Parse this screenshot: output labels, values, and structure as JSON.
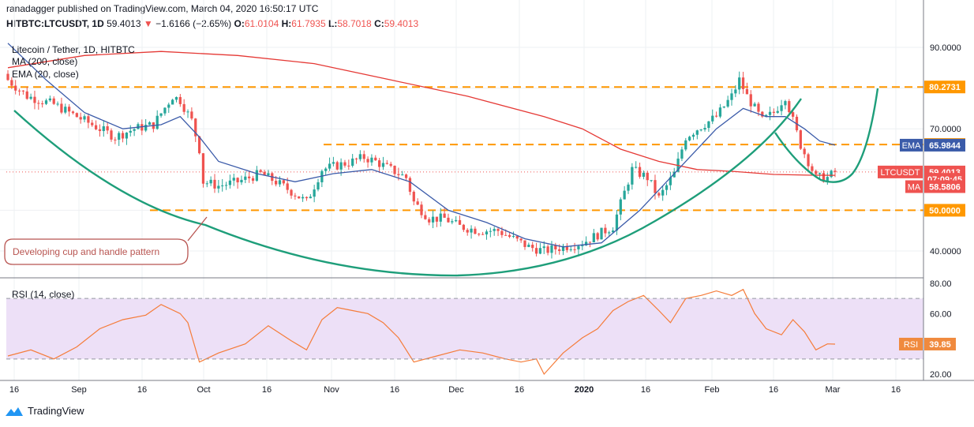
{
  "header": {
    "published": "ranadagger published on TradingView.com, March 04, 2020 16:50:17 UTC",
    "symbol": "HITBTC:LTCUSDT, 1D",
    "last": "59.4013",
    "arrow": "▼",
    "change": "−1.6166 (−2.65%)",
    "o_label": "O:",
    "o": "61.0104",
    "h_label": "H:",
    "h": "61.7935",
    "l_label": "L:",
    "l": "58.7018",
    "c_label": "C:",
    "c": "59.4013"
  },
  "legend": {
    "title": "Litecoin / Tether, 1D, HITBTC",
    "ma": "MA (200, close)",
    "ema": "EMA (20, close)"
  },
  "annotation": "Developing cup and handle pattern",
  "rsi_legend": "RSI (14, close)",
  "footer": {
    "logo": "TradingView"
  },
  "colors": {
    "up": "#26a69a",
    "down": "#ef5350",
    "ma": "#e53935",
    "ema": "#3b5ba9",
    "level": "#ff9800",
    "cup": "#1e9e7a",
    "rsi": "#f57c3a",
    "rsi_band": "#ede0f7"
  },
  "chart_data": {
    "type": "candlestick",
    "price_axis": {
      "ticks": [
        "90.0000",
        "80.0000",
        "70.0000",
        "60.0000",
        "50.0000",
        "40.0000"
      ],
      "range": [
        34,
        92
      ]
    },
    "time_axis": {
      "ticks": [
        "16",
        "Sep",
        "16",
        "Oct",
        "16",
        "Nov",
        "16",
        "Dec",
        "16",
        "2020",
        "16",
        "Feb",
        "16",
        "Mar",
        "16"
      ]
    },
    "levels": [
      80.2731,
      66.1486,
      50.0
    ],
    "price_labels": [
      {
        "name": "",
        "value": "80.2731",
        "price": 80.2731,
        "color": "#ff9800"
      },
      {
        "name": "",
        "value": "66.1486",
        "price": 66.1486,
        "color": "#ff9800"
      },
      {
        "name": "EMA",
        "value": "65.9844",
        "price": 65.9844,
        "color": "#3b5ba9"
      },
      {
        "name": "LTCUSDT",
        "value": "59.4013",
        "price": 59.4013,
        "color": "#ef5350"
      },
      {
        "name": "",
        "value": "07:09:45",
        "price": 57.6,
        "color": "#ef5350"
      },
      {
        "name": "MA",
        "value": "58.5806",
        "price": 55.8,
        "color": "#ef5350"
      },
      {
        "name": "",
        "value": "50.0000",
        "price": 50.0,
        "color": "#ff9800"
      }
    ],
    "close_points": [
      [
        0,
        82
      ],
      [
        5,
        78
      ],
      [
        12,
        76
      ],
      [
        20,
        72
      ],
      [
        28,
        68
      ],
      [
        33,
        70
      ],
      [
        38,
        71
      ],
      [
        43,
        78
      ],
      [
        45,
        77
      ],
      [
        48,
        72
      ],
      [
        50,
        65
      ],
      [
        51,
        57
      ],
      [
        55,
        56
      ],
      [
        60,
        57
      ],
      [
        66,
        59
      ],
      [
        70,
        57
      ],
      [
        75,
        54
      ],
      [
        78,
        52
      ],
      [
        82,
        60
      ],
      [
        86,
        61
      ],
      [
        90,
        62
      ],
      [
        93,
        63
      ],
      [
        96,
        62
      ],
      [
        100,
        60
      ],
      [
        104,
        58
      ],
      [
        106,
        52
      ],
      [
        110,
        48
      ],
      [
        114,
        48
      ],
      [
        118,
        46
      ],
      [
        123,
        45
      ],
      [
        128,
        45
      ],
      [
        134,
        42
      ],
      [
        136,
        41
      ],
      [
        140,
        40
      ],
      [
        145,
        41
      ],
      [
        150,
        42
      ],
      [
        154,
        44
      ],
      [
        158,
        46
      ],
      [
        163,
        60
      ],
      [
        167,
        58
      ],
      [
        170,
        53
      ],
      [
        174,
        59
      ],
      [
        177,
        68
      ],
      [
        180,
        70
      ],
      [
        185,
        73
      ],
      [
        189,
        78
      ],
      [
        191,
        82
      ],
      [
        193,
        78
      ],
      [
        197,
        72
      ],
      [
        200,
        74
      ],
      [
        203,
        78
      ],
      [
        205,
        72
      ],
      [
        207,
        66
      ],
      [
        211,
        58
      ],
      [
        214,
        58
      ],
      [
        216,
        59.4
      ]
    ],
    "ma200_points": [
      [
        0,
        85
      ],
      [
        20,
        88
      ],
      [
        40,
        89
      ],
      [
        60,
        88
      ],
      [
        80,
        86
      ],
      [
        100,
        82
      ],
      [
        120,
        78
      ],
      [
        140,
        73
      ],
      [
        150,
        70
      ],
      [
        160,
        65
      ],
      [
        170,
        62
      ],
      [
        180,
        60
      ],
      [
        190,
        59.5
      ],
      [
        200,
        58.8
      ],
      [
        210,
        58.6
      ],
      [
        216,
        58.58
      ]
    ],
    "ema20_points": [
      [
        0,
        91
      ],
      [
        10,
        82
      ],
      [
        20,
        74
      ],
      [
        30,
        70
      ],
      [
        40,
        71
      ],
      [
        45,
        73
      ],
      [
        50,
        68
      ],
      [
        55,
        62
      ],
      [
        65,
        59
      ],
      [
        75,
        57
      ],
      [
        85,
        59
      ],
      [
        95,
        60
      ],
      [
        105,
        57
      ],
      [
        115,
        50
      ],
      [
        125,
        47
      ],
      [
        135,
        43
      ],
      [
        145,
        41
      ],
      [
        155,
        42
      ],
      [
        165,
        50
      ],
      [
        175,
        60
      ],
      [
        185,
        70
      ],
      [
        192,
        75
      ],
      [
        198,
        73
      ],
      [
        203,
        73
      ],
      [
        208,
        70
      ],
      [
        212,
        67
      ],
      [
        216,
        65.98
      ]
    ],
    "rsi": {
      "legend": "RSI (14, close)",
      "ticks": [
        "80.00",
        "60.00",
        "40.00",
        "20.00"
      ],
      "range": [
        18,
        82
      ],
      "band": [
        30,
        70
      ],
      "last_label": "RSI",
      "last_value": "39.85",
      "last": 39.85,
      "points": [
        [
          0,
          32
        ],
        [
          6,
          36
        ],
        [
          12,
          30
        ],
        [
          18,
          38
        ],
        [
          24,
          50
        ],
        [
          30,
          56
        ],
        [
          36,
          59
        ],
        [
          40,
          66
        ],
        [
          45,
          60
        ],
        [
          47,
          54
        ],
        [
          50,
          28
        ],
        [
          55,
          34
        ],
        [
          62,
          40
        ],
        [
          68,
          52
        ],
        [
          74,
          42
        ],
        [
          78,
          36
        ],
        [
          82,
          56
        ],
        [
          86,
          64
        ],
        [
          90,
          62
        ],
        [
          94,
          60
        ],
        [
          98,
          54
        ],
        [
          102,
          44
        ],
        [
          106,
          28
        ],
        [
          112,
          32
        ],
        [
          118,
          36
        ],
        [
          124,
          34
        ],
        [
          130,
          30
        ],
        [
          134,
          28
        ],
        [
          138,
          30
        ],
        [
          140,
          20
        ],
        [
          145,
          34
        ],
        [
          150,
          44
        ],
        [
          154,
          50
        ],
        [
          158,
          62
        ],
        [
          162,
          68
        ],
        [
          166,
          72
        ],
        [
          170,
          62
        ],
        [
          173,
          54
        ],
        [
          177,
          70
        ],
        [
          181,
          72
        ],
        [
          185,
          75
        ],
        [
          189,
          72
        ],
        [
          192,
          76
        ],
        [
          195,
          60
        ],
        [
          198,
          50
        ],
        [
          202,
          46
        ],
        [
          205,
          56
        ],
        [
          208,
          48
        ],
        [
          211,
          36
        ],
        [
          214,
          40
        ],
        [
          216,
          39.85
        ]
      ]
    }
  }
}
